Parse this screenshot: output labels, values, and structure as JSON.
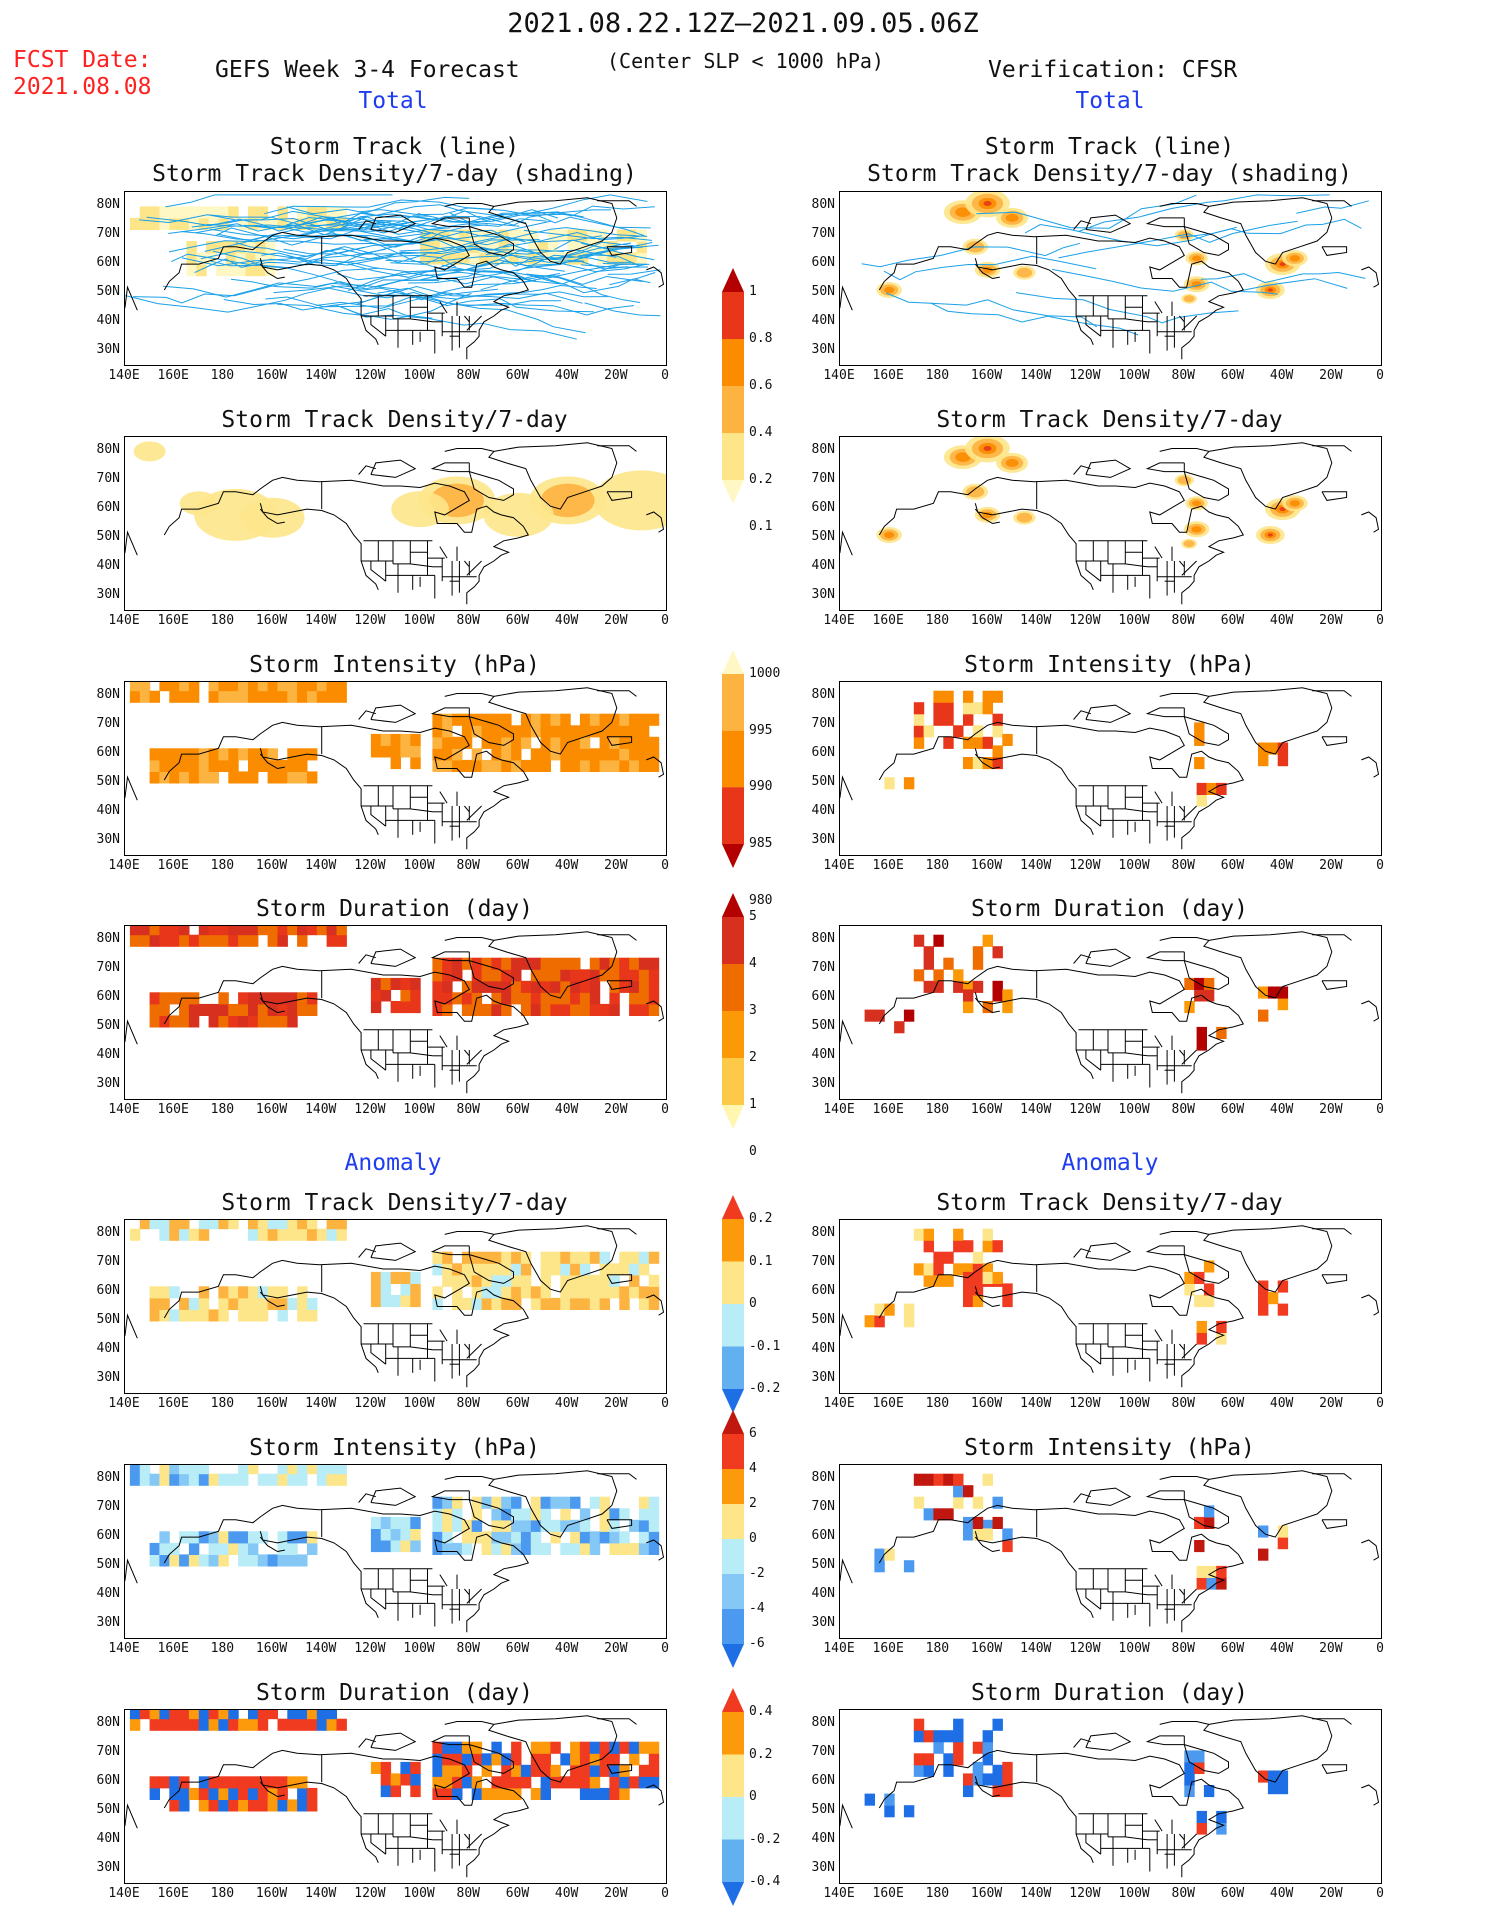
{
  "header": {
    "period": "2021.08.22.12Z–2021.09.05.06Z",
    "fcst_label": "FCST Date:",
    "fcst_date": "2021.08.08",
    "left_title": "GEFS Week 3-4 Forecast",
    "criterion": "(Center SLP < 1000 hPa)",
    "right_title": "Verification: CFSR"
  },
  "section_labels": {
    "total": "Total",
    "anomaly": "Anomaly"
  },
  "panel_titles": {
    "track_line": "Storm Track (line)",
    "track_shading": "Storm Track Density/7-day (shading)",
    "density": "Storm Track Density/7-day",
    "intensity": "Storm Intensity (hPa)",
    "duration": "Storm Duration (day)"
  },
  "axes": {
    "lat_ticks": [
      "80N",
      "70N",
      "60N",
      "50N",
      "40N",
      "30N"
    ],
    "lon_ticks": [
      "140E",
      "160E",
      "180",
      "160W",
      "140W",
      "120W",
      "100W",
      "80W",
      "60W",
      "40W",
      "20W",
      "0"
    ]
  },
  "colorbars": {
    "density": {
      "labels": [
        "1",
        "0.8",
        "0.6",
        "0.4",
        "0.2",
        "0.1"
      ],
      "colors": [
        "#b30000",
        "#e8361a",
        "#fb8c00",
        "#fdb340",
        "#fde58a",
        "#fff8c4"
      ]
    },
    "intensity": {
      "labels": [
        "1000",
        "995",
        "990",
        "985",
        "980"
      ],
      "colors": [
        "#fff8c4",
        "#fdb340",
        "#fb8c00",
        "#e8361a",
        "#b30000"
      ]
    },
    "duration": {
      "labels": [
        "5",
        "4",
        "3",
        "2",
        "1",
        "0"
      ],
      "colors": [
        "#b30000",
        "#d7301f",
        "#ef6c00",
        "#fb9a06",
        "#fdc948",
        "#fff6b0"
      ]
    },
    "anom_density": {
      "labels": [
        "0.2",
        "0.1",
        "0",
        "-0.1",
        "-0.2"
      ],
      "colors": [
        "#f03b20",
        "#fd9a0b",
        "#fde58a",
        "#b8ecf6",
        "#62b0f0",
        "#1e6fe6"
      ]
    },
    "anom_intensity": {
      "labels": [
        "6",
        "4",
        "2",
        "0",
        "-2",
        "-4",
        "-6"
      ],
      "colors": [
        "#c0170f",
        "#f03b20",
        "#fd9a0b",
        "#fde58a",
        "#b8ecf6",
        "#86c8f5",
        "#4b9af0",
        "#1e6fe6"
      ]
    },
    "anom_duration": {
      "labels": [
        "0.4",
        "0.2",
        "0",
        "-0.2",
        "-0.4"
      ],
      "colors": [
        "#f03b20",
        "#fd9a0b",
        "#fde58a",
        "#b8ecf6",
        "#62b0f0",
        "#1e6fe6"
      ]
    }
  },
  "colors": {
    "track_line": "#1aa0e8",
    "coast": "#000000"
  }
}
